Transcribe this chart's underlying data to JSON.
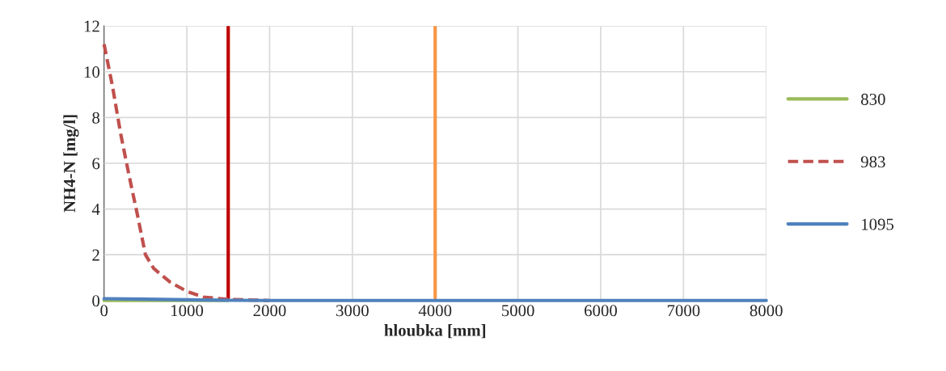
{
  "chart_data": {
    "type": "line",
    "xlabel": "hloubka [mm]",
    "ylabel": "NH4-N [mg/l]",
    "xlim": [
      0,
      8000
    ],
    "xticks": [
      0,
      1000,
      2000,
      3000,
      4000,
      5000,
      6000,
      7000,
      8000
    ],
    "ylim": [
      0,
      12
    ],
    "yticks": [
      0,
      2,
      4,
      6,
      8,
      10,
      12
    ],
    "grid": true,
    "legend": "right",
    "series": [
      {
        "name": "830",
        "color": "#9bbb59",
        "line_style": "solid",
        "x": [
          0,
          1500
        ],
        "values": [
          0,
          0
        ]
      },
      {
        "name": "983",
        "color": "#c0504d",
        "line_style": "dashed",
        "x": [
          0,
          100,
          200,
          300,
          400,
          500,
          600,
          800,
          1000,
          1200,
          1500,
          2000
        ],
        "values": [
          11.2,
          9.4,
          7.3,
          5.5,
          3.8,
          2.0,
          1.4,
          0.8,
          0.4,
          0.15,
          0.05,
          0
        ]
      },
      {
        "name": "1095",
        "color": "#4f81bd",
        "line_style": "solid",
        "x": [
          0,
          500,
          1000,
          1500,
          2000,
          8000
        ],
        "values": [
          0.08,
          0.06,
          0.03,
          0.01,
          0,
          0
        ]
      }
    ],
    "ref_lines": [
      {
        "axis": "x",
        "value": 1500,
        "color": "#c00000"
      },
      {
        "axis": "x",
        "value": 4000,
        "color": "#f79646"
      }
    ]
  }
}
